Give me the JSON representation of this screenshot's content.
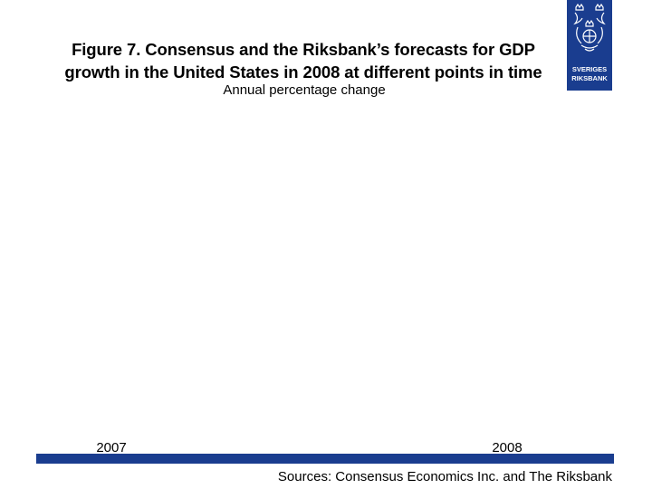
{
  "slide": {
    "title_line1": "Figure 7. Consensus and the Riksbank’s forecasts for GDP",
    "title_line2": "growth in the United States in 2008 at different points in time",
    "subtitle": "Annual percentage change",
    "source": "Sources: Consensus Economics Inc. and The Riksbank"
  },
  "logo": {
    "line1": "SVERIGES",
    "line2": "RIKSBANK",
    "color": "#1a3d8f"
  },
  "chart_data": {
    "type": "line",
    "title": "Figure 7. Consensus and the Riksbank’s forecasts for GDP growth in the United States in 2008 at different points in time",
    "subtitle": "Annual percentage change",
    "x_tick_labels": [
      "2007",
      "2008"
    ],
    "series": [],
    "axis_color": "#1a3d8f"
  }
}
